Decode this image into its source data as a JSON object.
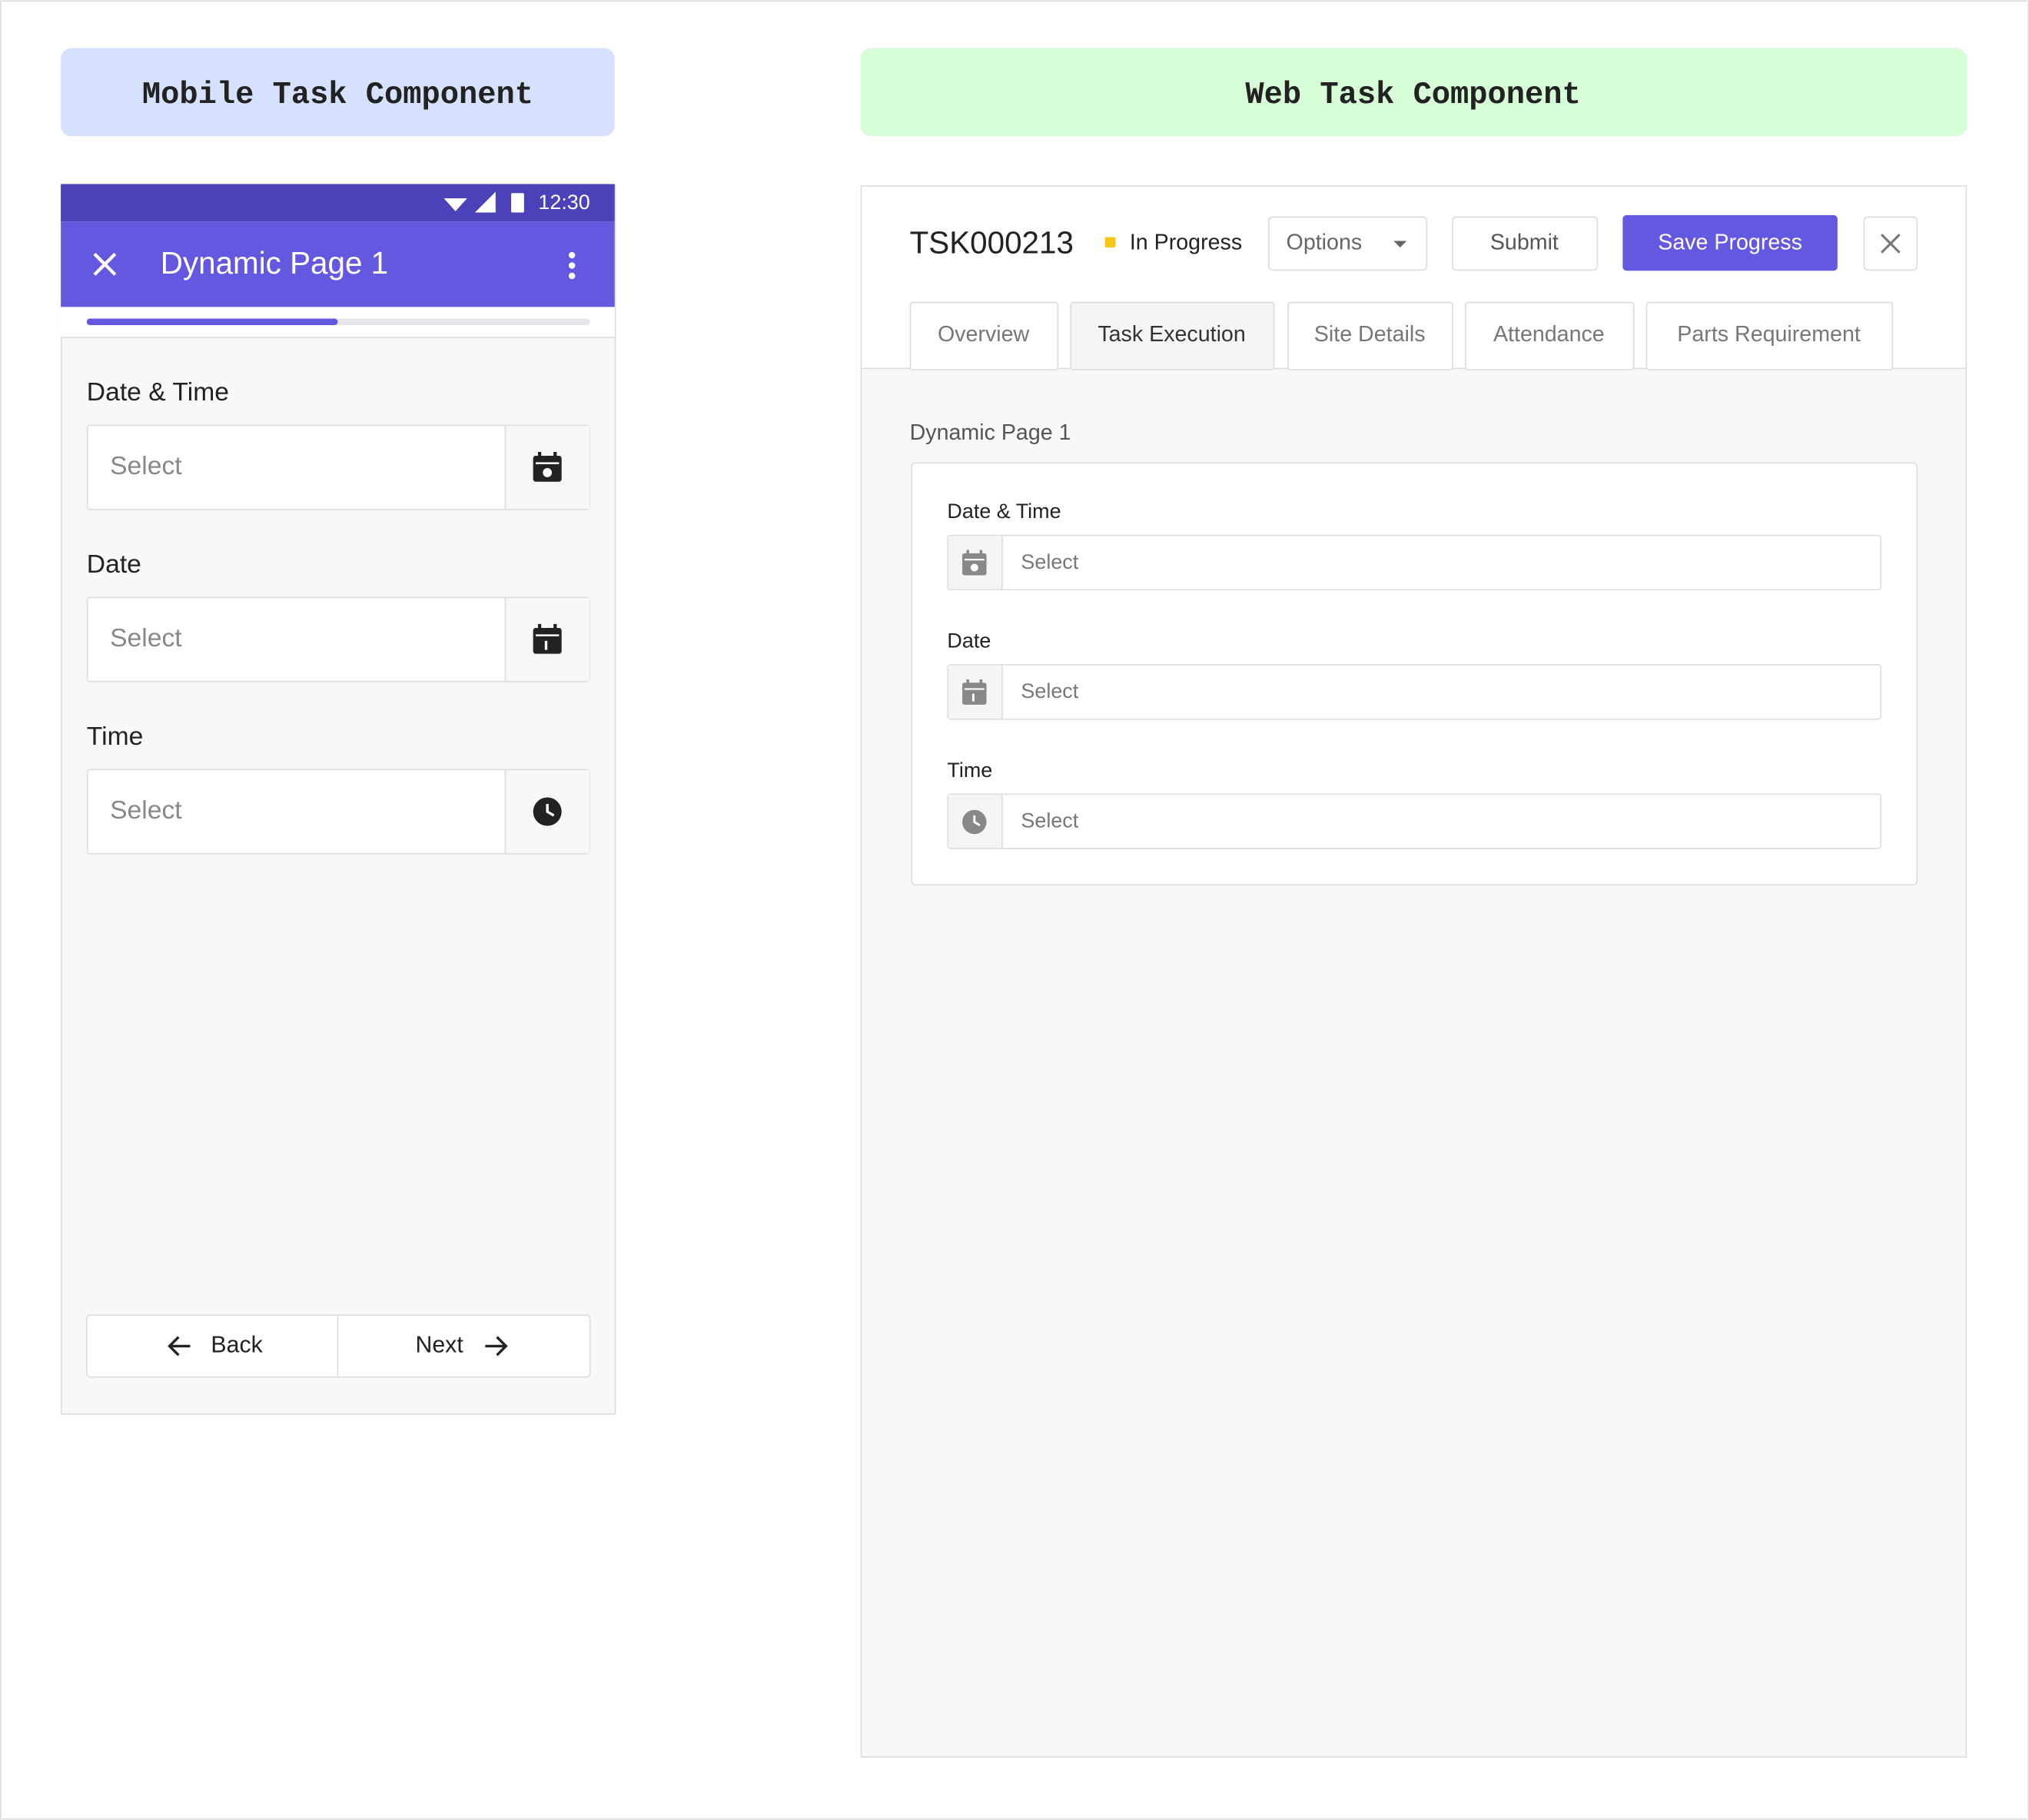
{
  "mobile": {
    "label": "Mobile Task Component",
    "status_time": "12:30",
    "title": "Dynamic Page 1",
    "fields": [
      {
        "label": "Date & Time",
        "placeholder": "Select"
      },
      {
        "label": "Date",
        "placeholder": "Select"
      },
      {
        "label": "Time",
        "placeholder": "Select"
      }
    ],
    "back": "Back",
    "next": "Next"
  },
  "web": {
    "label": "Web Task Component",
    "task_id": "TSK000213",
    "status": "In Progress",
    "options": "Options",
    "submit": "Submit",
    "save": "Save Progress",
    "tabs": [
      "Overview",
      "Task Execution",
      "Site Details",
      "Attendance",
      "Parts Requirement"
    ],
    "page_title": "Dynamic Page 1",
    "fields": [
      {
        "label": "Date & Time",
        "placeholder": "Select"
      },
      {
        "label": "Date",
        "placeholder": "Select"
      },
      {
        "label": "Time",
        "placeholder": "Select"
      }
    ]
  }
}
